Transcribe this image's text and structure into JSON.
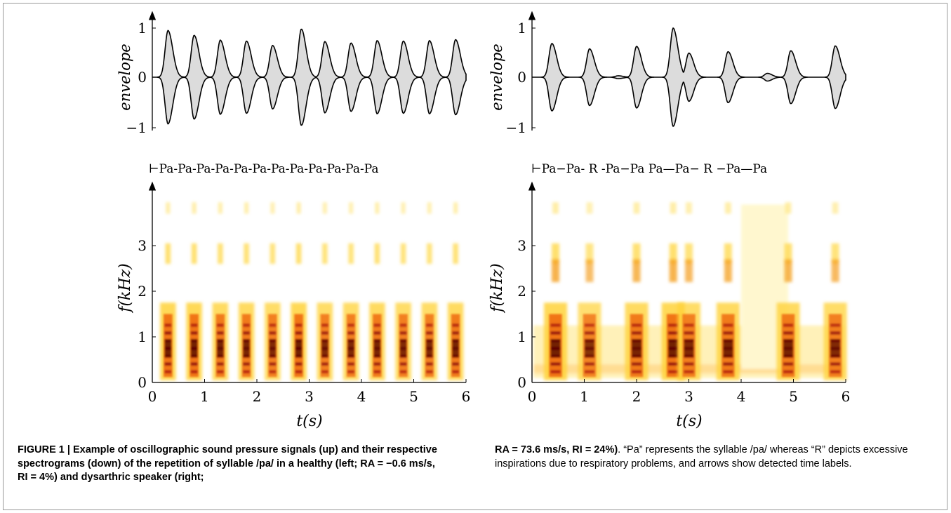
{
  "chart_data": [
    {
      "type": "area",
      "panel": "left-envelope",
      "ylabel": "envelope",
      "ylim": [
        -1,
        1
      ],
      "yticks": [
        "1",
        "0",
        "−1"
      ],
      "x_range_s": [
        0,
        6
      ],
      "peaks": [
        {
          "t": 0.3,
          "a": 0.97
        },
        {
          "t": 0.8,
          "a": 0.87
        },
        {
          "t": 1.3,
          "a": 0.77
        },
        {
          "t": 1.8,
          "a": 0.75
        },
        {
          "t": 2.3,
          "a": 0.66
        },
        {
          "t": 2.85,
          "a": 1.0
        },
        {
          "t": 3.3,
          "a": 0.74
        },
        {
          "t": 3.8,
          "a": 0.71
        },
        {
          "t": 4.3,
          "a": 0.76
        },
        {
          "t": 4.8,
          "a": 0.75
        },
        {
          "t": 5.3,
          "a": 0.76
        },
        {
          "t": 5.8,
          "a": 0.78
        }
      ]
    },
    {
      "type": "area",
      "panel": "right-envelope",
      "ylabel": "envelope",
      "ylim": [
        -1,
        1
      ],
      "yticks": [
        "1",
        "0",
        "−1"
      ],
      "x_range_s": [
        0,
        6
      ],
      "peaks": [
        {
          "t": 0.38,
          "a": 0.7
        },
        {
          "t": 1.1,
          "a": 0.59
        },
        {
          "t": 1.65,
          "a": 0.03
        },
        {
          "t": 2.0,
          "a": 0.64
        },
        {
          "t": 2.7,
          "a": 1.02
        },
        {
          "t": 3.0,
          "a": 0.5
        },
        {
          "t": 3.75,
          "a": 0.53
        },
        {
          "t": 4.5,
          "a": 0.08
        },
        {
          "t": 4.95,
          "a": 0.55
        },
        {
          "t": 5.8,
          "a": 0.65
        }
      ]
    },
    {
      "type": "heatmap",
      "panel": "left-spectrogram",
      "xlabel": "t(s)",
      "ylabel": "f(kHz)",
      "xlim": [
        0,
        6
      ],
      "ylim": [
        0,
        4
      ],
      "xticks": [
        "0",
        "1",
        "2",
        "3",
        "4",
        "5",
        "6"
      ],
      "yticks": [
        "0",
        "1",
        "2",
        "3"
      ],
      "segments": [
        {
          "t": 0.3,
          "i": 1.0
        },
        {
          "t": 0.8,
          "i": 1.0
        },
        {
          "t": 1.3,
          "i": 0.95
        },
        {
          "t": 1.8,
          "i": 0.95
        },
        {
          "t": 2.3,
          "i": 0.9
        },
        {
          "t": 2.8,
          "i": 1.0
        },
        {
          "t": 3.3,
          "i": 0.9
        },
        {
          "t": 3.8,
          "i": 0.9
        },
        {
          "t": 4.3,
          "i": 0.95
        },
        {
          "t": 4.8,
          "i": 0.9
        },
        {
          "t": 5.3,
          "i": 0.9
        },
        {
          "t": 5.8,
          "i": 0.95
        }
      ]
    },
    {
      "type": "heatmap",
      "panel": "right-spectrogram",
      "xlabel": "t(s)",
      "ylabel": "f(kHz)",
      "xlim": [
        0,
        6
      ],
      "ylim": [
        0,
        4
      ],
      "xticks": [
        "0",
        "1",
        "2",
        "3",
        "4",
        "5",
        "6"
      ],
      "yticks": [
        "0",
        "1",
        "2",
        "3"
      ],
      "segments": [
        {
          "t": 0.45,
          "i": 1.0
        },
        {
          "t": 1.1,
          "i": 0.85
        },
        {
          "t": 2.0,
          "i": 0.95
        },
        {
          "t": 2.7,
          "i": 1.0
        },
        {
          "t": 3.0,
          "i": 0.9
        },
        {
          "t": 3.75,
          "i": 0.95
        },
        {
          "t": 4.9,
          "i": 0.95
        },
        {
          "t": 5.8,
          "i": 0.9
        }
      ]
    }
  ],
  "labels": {
    "left": "⊢Pa-Pa-Pa-Pa-Pa-Pa-Pa-Pa-Pa-Pa-Pa-Pa",
    "right": "⊢Pa−Pa- R -Pa−Pa Pa—Pa− R −Pa—Pa"
  },
  "caption": {
    "left": "FIGURE 1 | Example of oscillographic sound pressure signals (up) and their respective spectrograms (down) of the repetition of syllable /pa/ in a healthy (left; RA = −0.6 ms/s, RI = 4%) and dysarthric speaker (right;",
    "right_bold": "RA = 73.6 ms/s, RI = 24%)",
    "right_rest": ". “Pa” represents the syllable /pa/ whereas “R” depicts excessive inspirations due to respiratory problems, and arrows show detected time labels."
  }
}
